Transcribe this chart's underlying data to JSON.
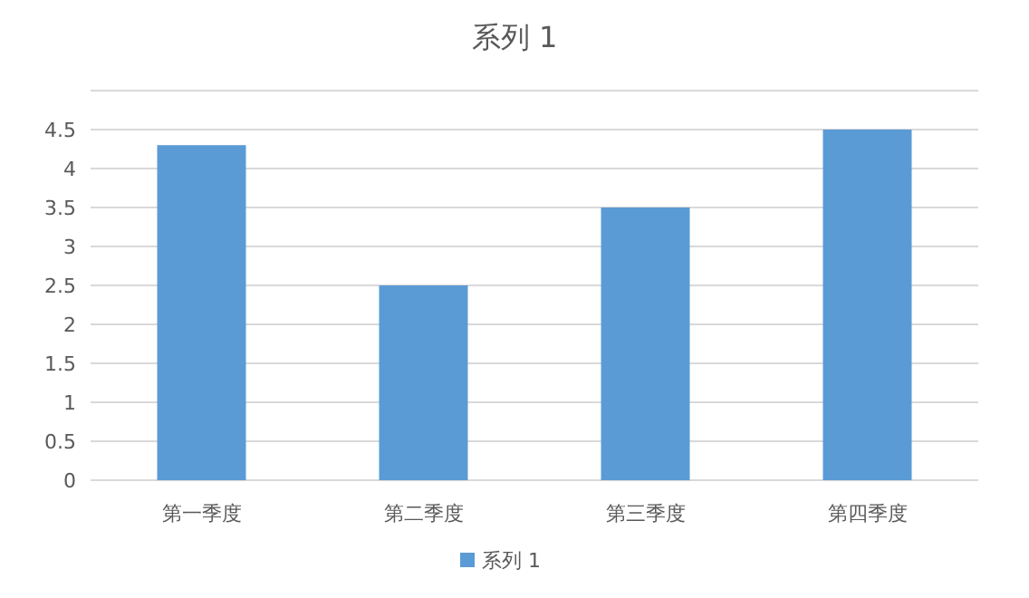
{
  "chart_data": {
    "type": "bar",
    "title": "系列 1",
    "categories": [
      "第一季度",
      "第二季度",
      "第三季度",
      "第四季度"
    ],
    "series": [
      {
        "name": "系列 1",
        "color": "#5b9bd5",
        "values": [
          4.3,
          2.5,
          3.5,
          4.5
        ]
      }
    ],
    "ylim": [
      0,
      5
    ],
    "yticks": [
      0,
      0.5,
      1,
      1.5,
      2,
      2.5,
      3,
      3.5,
      4,
      4.5,
      {
        "value": 5,
        "label": null
      }
    ],
    "grid": "y",
    "legend": "bottom"
  }
}
